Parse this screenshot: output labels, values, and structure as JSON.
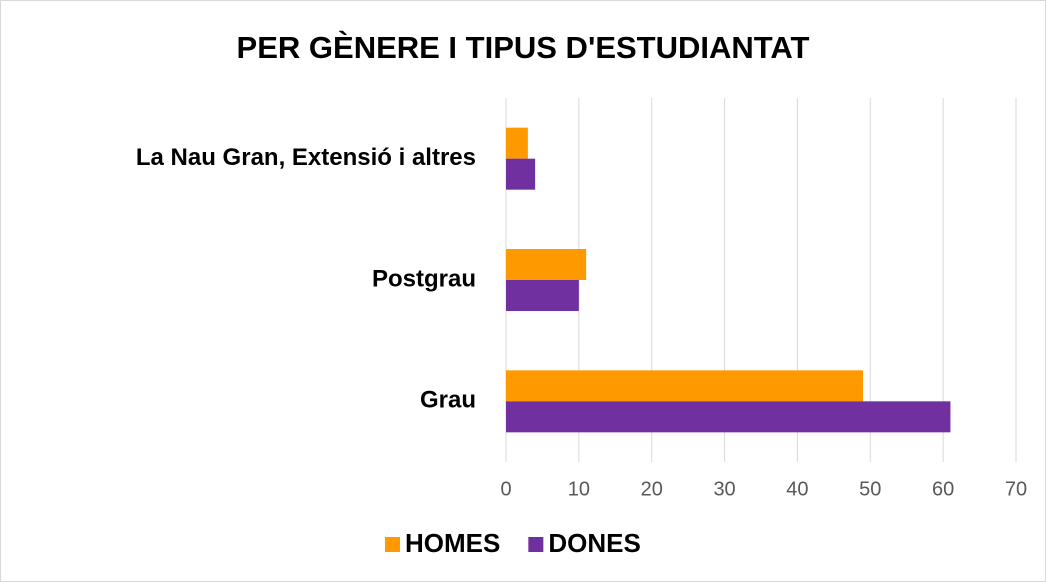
{
  "chart_data": {
    "type": "bar",
    "orientation": "horizontal",
    "title": "PER GÈNERE I TIPUS D'ESTUDIANTAT",
    "categories": [
      "La Nau Gran, Extensió i altres",
      "Postgrau",
      "Grau"
    ],
    "series": [
      {
        "name": "HOMES",
        "color": "#ff9900",
        "values": [
          3,
          11,
          49
        ]
      },
      {
        "name": "DONES",
        "color": "#7030a0",
        "values": [
          4,
          10,
          61
        ]
      }
    ],
    "xlim": [
      0,
      70
    ],
    "xticks": [
      0,
      10,
      20,
      30,
      40,
      50,
      60,
      70
    ],
    "grid": true,
    "legend": "bottom"
  }
}
